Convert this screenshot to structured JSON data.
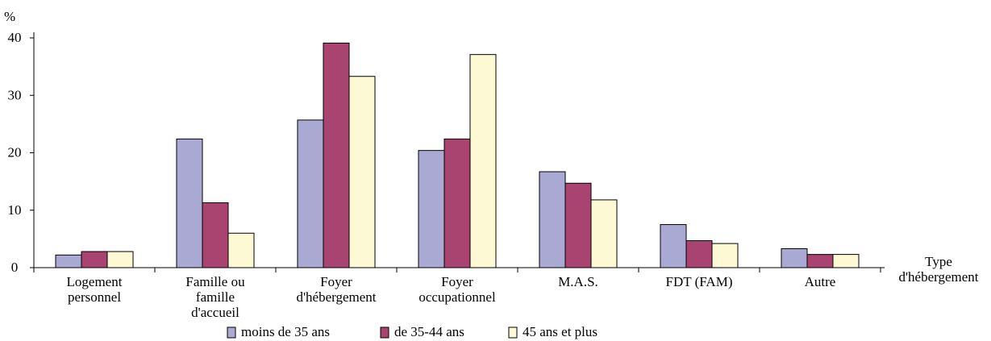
{
  "chart_data": {
    "type": "bar",
    "y_unit": "%",
    "ylabel": "%",
    "xlabel": [
      "Type",
      "d'hébergement"
    ],
    "ylim": [
      0,
      40
    ],
    "yticks": [
      0,
      10,
      20,
      30,
      40
    ],
    "grid": false,
    "legend_position": "bottom",
    "categories": [
      [
        "Logement",
        "personnel"
      ],
      [
        "Famille ou",
        "famille",
        "d'accueil"
      ],
      [
        "Foyer",
        "d'hébergement"
      ],
      [
        "Foyer",
        "occupationnel"
      ],
      [
        "M.A.S."
      ],
      [
        "FDT (FAM)"
      ],
      [
        "Autre"
      ]
    ],
    "series": [
      {
        "name": "moins de 35 ans",
        "color": "#a9a9d4",
        "values": [
          2.2,
          22.4,
          25.7,
          20.4,
          16.7,
          7.5,
          3.3
        ]
      },
      {
        "name": "de 35-44 ans",
        "color": "#a8446f",
        "values": [
          2.8,
          11.3,
          39.1,
          22.4,
          14.7,
          4.7,
          2.3
        ]
      },
      {
        "name": "45 ans et plus",
        "color": "#fdf9d4",
        "values": [
          2.8,
          6.0,
          33.3,
          37.1,
          11.8,
          4.2,
          2.3
        ]
      }
    ]
  }
}
